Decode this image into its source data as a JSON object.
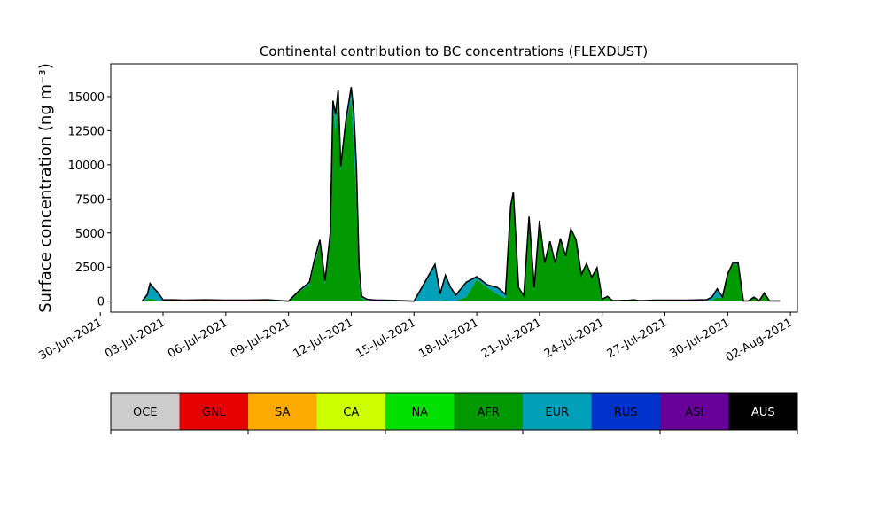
{
  "chart_data": {
    "type": "area",
    "stacked": true,
    "title": "Continental contribution to BC concentrations (FLEXDUST)",
    "ylabel": "Surface concentration (ng m⁻³)",
    "xlabel": "",
    "ylim": [
      -800,
      17400
    ],
    "xlim": [
      "2021-06-30T12:00",
      "2021-08-02T08:00"
    ],
    "grid": false,
    "legend": "colorbar-below",
    "x_tick_labels": [
      "30-Jun-2021",
      "03-Jul-2021",
      "06-Jul-2021",
      "09-Jul-2021",
      "12-Jul-2021",
      "15-Jul-2021",
      "18-Jul-2021",
      "21-Jul-2021",
      "24-Jul-2021",
      "27-Jul-2021",
      "30-Jul-2021",
      "02-Aug-2021"
    ],
    "y_tick_labels": [
      "0",
      "2500",
      "5000",
      "7500",
      "10000",
      "12500",
      "15000"
    ],
    "y_ticks": [
      0,
      2500,
      5000,
      7500,
      10000,
      12500,
      15000
    ],
    "x": [
      "2021-07-02T00:00",
      "2021-07-02T06:00",
      "2021-07-02T09:00",
      "2021-07-02T12:00",
      "2021-07-02T18:00",
      "2021-07-03T00:00",
      "2021-07-03T06:00",
      "2021-07-03T12:00",
      "2021-07-04T00:00",
      "2021-07-05T00:00",
      "2021-07-06T00:00",
      "2021-07-07T00:00",
      "2021-07-08T00:00",
      "2021-07-09T00:00",
      "2021-07-09T12:00",
      "2021-07-10T00:00",
      "2021-07-10T06:00",
      "2021-07-10T12:00",
      "2021-07-10T18:00",
      "2021-07-11T00:00",
      "2021-07-11T03:00",
      "2021-07-11T06:00",
      "2021-07-11T09:00",
      "2021-07-11T12:00",
      "2021-07-11T18:00",
      "2021-07-12T00:00",
      "2021-07-12T03:00",
      "2021-07-12T06:00",
      "2021-07-12T09:00",
      "2021-07-12T12:00",
      "2021-07-12T18:00",
      "2021-07-13T00:00",
      "2021-07-13T06:00",
      "2021-07-13T12:00",
      "2021-07-14T00:00",
      "2021-07-15T00:00",
      "2021-07-16T00:00",
      "2021-07-16T06:00",
      "2021-07-16T12:00",
      "2021-07-16T18:00",
      "2021-07-17T00:00",
      "2021-07-17T12:00",
      "2021-07-18T00:00",
      "2021-07-18T12:00",
      "2021-07-19T00:00",
      "2021-07-19T09:00",
      "2021-07-19T15:00",
      "2021-07-19T18:00",
      "2021-07-20T00:00",
      "2021-07-20T06:00",
      "2021-07-20T12:00",
      "2021-07-20T18:00",
      "2021-07-21T00:00",
      "2021-07-21T06:00",
      "2021-07-21T12:00",
      "2021-07-21T18:00",
      "2021-07-22T00:00",
      "2021-07-22T06:00",
      "2021-07-22T12:00",
      "2021-07-22T18:00",
      "2021-07-23T00:00",
      "2021-07-23T06:00",
      "2021-07-23T12:00",
      "2021-07-23T18:00",
      "2021-07-24T00:00",
      "2021-07-24T06:00",
      "2021-07-24T12:00",
      "2021-07-24T18:00",
      "2021-07-25T00:00",
      "2021-07-25T06:00",
      "2021-07-25T12:00",
      "2021-07-25T18:00",
      "2021-07-26T00:00",
      "2021-07-26T12:00",
      "2021-07-27T00:00",
      "2021-07-28T00:00",
      "2021-07-29T00:00",
      "2021-07-29T06:00",
      "2021-07-29T12:00",
      "2021-07-29T18:00",
      "2021-07-30T00:00",
      "2021-07-30T06:00",
      "2021-07-30T12:00",
      "2021-07-30T18:00",
      "2021-07-31T00:00",
      "2021-07-31T06:00",
      "2021-07-31T12:00",
      "2021-07-31T18:00",
      "2021-08-01T00:00",
      "2021-08-01T12:00"
    ],
    "series": [
      {
        "name": "OCE",
        "color": "#cccccc",
        "values": [
          0,
          0,
          0,
          0,
          0,
          0,
          0,
          0,
          0,
          0,
          0,
          0,
          0,
          0,
          0,
          0,
          0,
          0,
          0,
          0,
          0,
          0,
          0,
          0,
          0,
          0,
          0,
          0,
          0,
          0,
          0,
          0,
          0,
          0,
          0,
          0,
          0,
          0,
          0,
          0,
          0,
          0,
          0,
          0,
          0,
          0,
          0,
          0,
          0,
          0,
          0,
          0,
          0,
          0,
          0,
          0,
          0,
          0,
          0,
          0,
          0,
          0,
          0,
          0,
          0,
          0,
          0,
          0,
          0,
          0,
          0,
          0,
          0,
          0,
          0,
          0,
          0,
          0,
          0,
          0,
          0,
          0,
          0,
          0,
          0,
          0,
          0,
          0,
          0,
          0
        ]
      },
      {
        "name": "GNL",
        "color": "#e60000",
        "values": [
          0,
          0,
          0,
          0,
          0,
          0,
          0,
          0,
          0,
          0,
          0,
          0,
          0,
          0,
          0,
          0,
          0,
          0,
          0,
          0,
          0,
          0,
          0,
          0,
          0,
          0,
          0,
          0,
          0,
          0,
          0,
          0,
          0,
          0,
          0,
          0,
          0,
          0,
          0,
          0,
          0,
          0,
          0,
          0,
          0,
          0,
          0,
          0,
          0,
          0,
          0,
          0,
          0,
          0,
          0,
          0,
          0,
          0,
          0,
          0,
          0,
          0,
          0,
          0,
          0,
          0,
          0,
          0,
          0,
          0,
          0,
          0,
          0,
          0,
          0,
          0,
          0,
          0,
          0,
          0,
          0,
          0,
          0,
          0,
          0,
          0,
          0,
          0,
          0,
          0
        ]
      },
      {
        "name": "SA",
        "color": "#ffaa00",
        "values": [
          0,
          0,
          0,
          0,
          0,
          0,
          0,
          0,
          0,
          0,
          0,
          0,
          0,
          0,
          0,
          0,
          0,
          0,
          0,
          0,
          0,
          0,
          0,
          0,
          0,
          0,
          0,
          0,
          0,
          0,
          0,
          0,
          0,
          0,
          0,
          0,
          0,
          0,
          0,
          0,
          0,
          0,
          0,
          0,
          0,
          0,
          0,
          0,
          0,
          0,
          0,
          0,
          0,
          0,
          0,
          0,
          0,
          0,
          0,
          0,
          0,
          0,
          0,
          0,
          0,
          0,
          0,
          0,
          0,
          0,
          0,
          0,
          0,
          0,
          0,
          0,
          0,
          0,
          0,
          0,
          0,
          0,
          0,
          0,
          0,
          0,
          0,
          0,
          0,
          0
        ]
      },
      {
        "name": "CA",
        "color": "#ccff00",
        "values": [
          0,
          0,
          0,
          0,
          0,
          0,
          0,
          0,
          0,
          0,
          0,
          0,
          0,
          0,
          0,
          0,
          0,
          0,
          0,
          0,
          0,
          0,
          0,
          0,
          0,
          0,
          0,
          0,
          0,
          0,
          0,
          0,
          0,
          0,
          0,
          0,
          0,
          0,
          0,
          0,
          0,
          0,
          0,
          0,
          0,
          0,
          0,
          0,
          0,
          0,
          0,
          0,
          0,
          0,
          0,
          0,
          0,
          0,
          0,
          0,
          0,
          0,
          0,
          0,
          0,
          0,
          0,
          0,
          0,
          0,
          0,
          0,
          0,
          0,
          0,
          0,
          0,
          0,
          0,
          0,
          0,
          0,
          0,
          0,
          0,
          0,
          0,
          0,
          0,
          0
        ]
      },
      {
        "name": "NA",
        "color": "#00e000",
        "values": [
          0,
          0,
          0,
          0,
          0,
          0,
          0,
          0,
          0,
          0,
          0,
          0,
          0,
          0,
          0,
          0,
          0,
          0,
          0,
          0,
          0,
          0,
          0,
          0,
          0,
          0,
          0,
          0,
          0,
          0,
          0,
          0,
          0,
          0,
          0,
          0,
          0,
          0,
          0,
          0,
          0,
          0,
          0,
          0,
          0,
          0,
          0,
          0,
          0,
          0,
          0,
          0,
          0,
          0,
          0,
          0,
          0,
          0,
          0,
          0,
          0,
          0,
          0,
          0,
          0,
          0,
          0,
          0,
          0,
          0,
          0,
          0,
          0,
          0,
          0,
          0,
          0,
          0,
          0,
          0,
          0,
          0,
          0,
          0,
          0,
          0,
          0,
          0,
          0,
          0
        ]
      },
      {
        "name": "AFR",
        "color": "#009900",
        "values": [
          0,
          150,
          200,
          150,
          50,
          40,
          40,
          40,
          30,
          40,
          30,
          30,
          40,
          0,
          700,
          1200,
          2800,
          4200,
          1300,
          4400,
          14200,
          12500,
          15200,
          9600,
          13000,
          14800,
          11000,
          7500,
          1500,
          200,
          60,
          40,
          30,
          30,
          20,
          0,
          0,
          50,
          100,
          0,
          50,
          300,
          1600,
          1000,
          500,
          200,
          6800,
          8000,
          1000,
          300,
          6200,
          800,
          5800,
          2700,
          4300,
          2700,
          4500,
          3200,
          5200,
          4400,
          1900,
          2700,
          1700,
          2400,
          100,
          300,
          20,
          20,
          40,
          40,
          80,
          20,
          20,
          40,
          40,
          40,
          80,
          100,
          300,
          200,
          1900,
          2700,
          2700,
          20,
          20,
          300,
          20,
          600,
          20,
          20
        ]
      },
      {
        "name": "EUR",
        "color": "#00a0b9",
        "values": [
          0,
          350,
          1100,
          900,
          600,
          60,
          60,
          60,
          50,
          60,
          50,
          50,
          60,
          0,
          60,
          200,
          300,
          300,
          200,
          600,
          500,
          1200,
          300,
          300,
          300,
          900,
          2800,
          2300,
          1000,
          150,
          80,
          60,
          50,
          50,
          40,
          0,
          2700,
          500,
          1800,
          1000,
          400,
          1100,
          200,
          200,
          500,
          300,
          200,
          0,
          0,
          100,
          0,
          200,
          100,
          100,
          100,
          100,
          100,
          100,
          100,
          100,
          50,
          50,
          50,
          50,
          50,
          50,
          20,
          20,
          20,
          20,
          20,
          20,
          20,
          30,
          30,
          30,
          30,
          200,
          600,
          100,
          100,
          100,
          100,
          0,
          0,
          0,
          0,
          0,
          0,
          0
        ]
      },
      {
        "name": "RUS",
        "color": "#0033cc",
        "values": [
          0,
          0,
          0,
          0,
          0,
          0,
          0,
          0,
          0,
          0,
          0,
          0,
          0,
          0,
          0,
          0,
          0,
          0,
          0,
          0,
          0,
          0,
          0,
          0,
          0,
          0,
          0,
          0,
          0,
          0,
          0,
          0,
          0,
          0,
          0,
          0,
          0,
          0,
          0,
          0,
          0,
          0,
          0,
          0,
          0,
          0,
          0,
          0,
          0,
          0,
          0,
          0,
          0,
          0,
          0,
          0,
          0,
          0,
          0,
          0,
          0,
          0,
          0,
          0,
          0,
          0,
          0,
          0,
          0,
          0,
          0,
          0,
          0,
          0,
          0,
          0,
          0,
          0,
          0,
          0,
          0,
          0,
          0,
          0,
          0,
          0,
          0,
          0,
          0,
          0
        ]
      },
      {
        "name": "ASI",
        "color": "#660099",
        "values": [
          0,
          0,
          0,
          0,
          0,
          0,
          0,
          0,
          0,
          0,
          0,
          0,
          0,
          0,
          0,
          0,
          0,
          0,
          0,
          0,
          0,
          0,
          0,
          0,
          0,
          0,
          0,
          0,
          0,
          0,
          0,
          0,
          0,
          0,
          0,
          0,
          0,
          0,
          0,
          0,
          0,
          0,
          0,
          0,
          0,
          0,
          0,
          0,
          0,
          0,
          0,
          0,
          0,
          0,
          0,
          0,
          0,
          0,
          0,
          0,
          0,
          0,
          0,
          0,
          0,
          0,
          0,
          0,
          0,
          0,
          0,
          0,
          0,
          0,
          0,
          0,
          0,
          0,
          0,
          0,
          0,
          0,
          0,
          0,
          0,
          0,
          0,
          0,
          0,
          0
        ]
      },
      {
        "name": "AUS",
        "color": "#000000",
        "values": [
          0,
          0,
          0,
          0,
          0,
          0,
          0,
          0,
          0,
          0,
          0,
          0,
          0,
          0,
          0,
          0,
          0,
          0,
          0,
          0,
          0,
          0,
          0,
          0,
          0,
          0,
          0,
          0,
          0,
          0,
          0,
          0,
          0,
          0,
          0,
          0,
          0,
          0,
          0,
          0,
          0,
          0,
          0,
          0,
          0,
          0,
          0,
          0,
          0,
          0,
          0,
          0,
          0,
          0,
          0,
          0,
          0,
          0,
          0,
          0,
          0,
          0,
          0,
          0,
          0,
          0,
          0,
          0,
          0,
          0,
          0,
          0,
          0,
          0,
          0,
          0,
          0,
          0,
          0,
          0,
          0,
          0,
          0,
          0,
          0,
          0,
          0,
          0,
          0,
          0
        ]
      }
    ],
    "colorbar": [
      {
        "label": "OCE",
        "color": "#cccccc",
        "text_color": "#000000"
      },
      {
        "label": "GNL",
        "color": "#e60000",
        "text_color": "#000000"
      },
      {
        "label": "SA",
        "color": "#ffaa00",
        "text_color": "#000000"
      },
      {
        "label": "CA",
        "color": "#ccff00",
        "text_color": "#000000"
      },
      {
        "label": "NA",
        "color": "#00e000",
        "text_color": "#000000"
      },
      {
        "label": "AFR",
        "color": "#009900",
        "text_color": "#000000"
      },
      {
        "label": "EUR",
        "color": "#00a0b9",
        "text_color": "#000000"
      },
      {
        "label": "RUS",
        "color": "#0033cc",
        "text_color": "#000000"
      },
      {
        "label": "ASI",
        "color": "#660099",
        "text_color": "#000000"
      },
      {
        "label": "AUS",
        "color": "#000000",
        "text_color": "#ffffff"
      }
    ]
  }
}
